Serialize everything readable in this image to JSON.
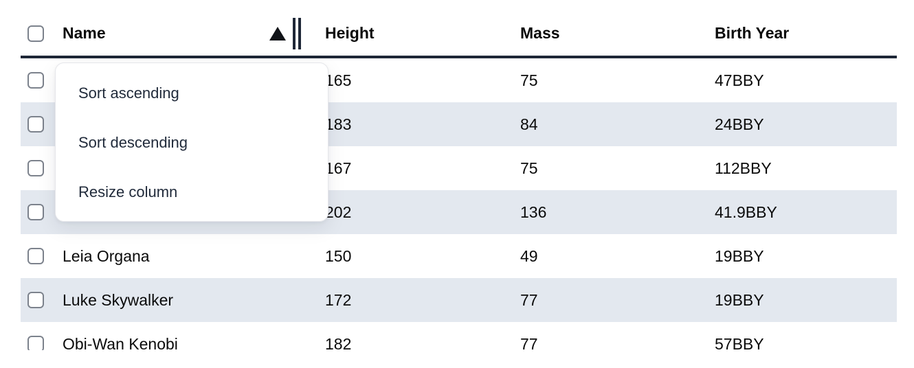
{
  "table": {
    "columns": [
      {
        "label": "Name",
        "sort": "ascending"
      },
      {
        "label": "Height"
      },
      {
        "label": "Mass"
      },
      {
        "label": "Birth Year"
      }
    ],
    "rows": [
      {
        "name": "",
        "height": "165",
        "mass": "75",
        "birth_year": "47BBY"
      },
      {
        "name": "",
        "height": "183",
        "mass": "84",
        "birth_year": "24BBY"
      },
      {
        "name": "",
        "height": "167",
        "mass": "75",
        "birth_year": "112BBY"
      },
      {
        "name": "",
        "height": "202",
        "mass": "136",
        "birth_year": "41.9BBY"
      },
      {
        "name": "Leia Organa",
        "height": "150",
        "mass": "49",
        "birth_year": "19BBY"
      },
      {
        "name": "Luke Skywalker",
        "height": "172",
        "mass": "77",
        "birth_year": "19BBY"
      },
      {
        "name": "Obi-Wan Kenobi",
        "height": "182",
        "mass": "77",
        "birth_year": "57BBY"
      }
    ]
  },
  "menu": {
    "items": [
      {
        "label": "Sort ascending"
      },
      {
        "label": "Sort descending"
      },
      {
        "label": "Resize column"
      }
    ]
  },
  "icons": {
    "sort_indicator": "triangle-up",
    "resize_handle": "double-vertical-bars"
  },
  "colors": {
    "header_border": "#1e2737",
    "row_stripe": "#e3e8ef",
    "menu_text": "#212b3b",
    "checkbox_border": "#7c828c"
  }
}
